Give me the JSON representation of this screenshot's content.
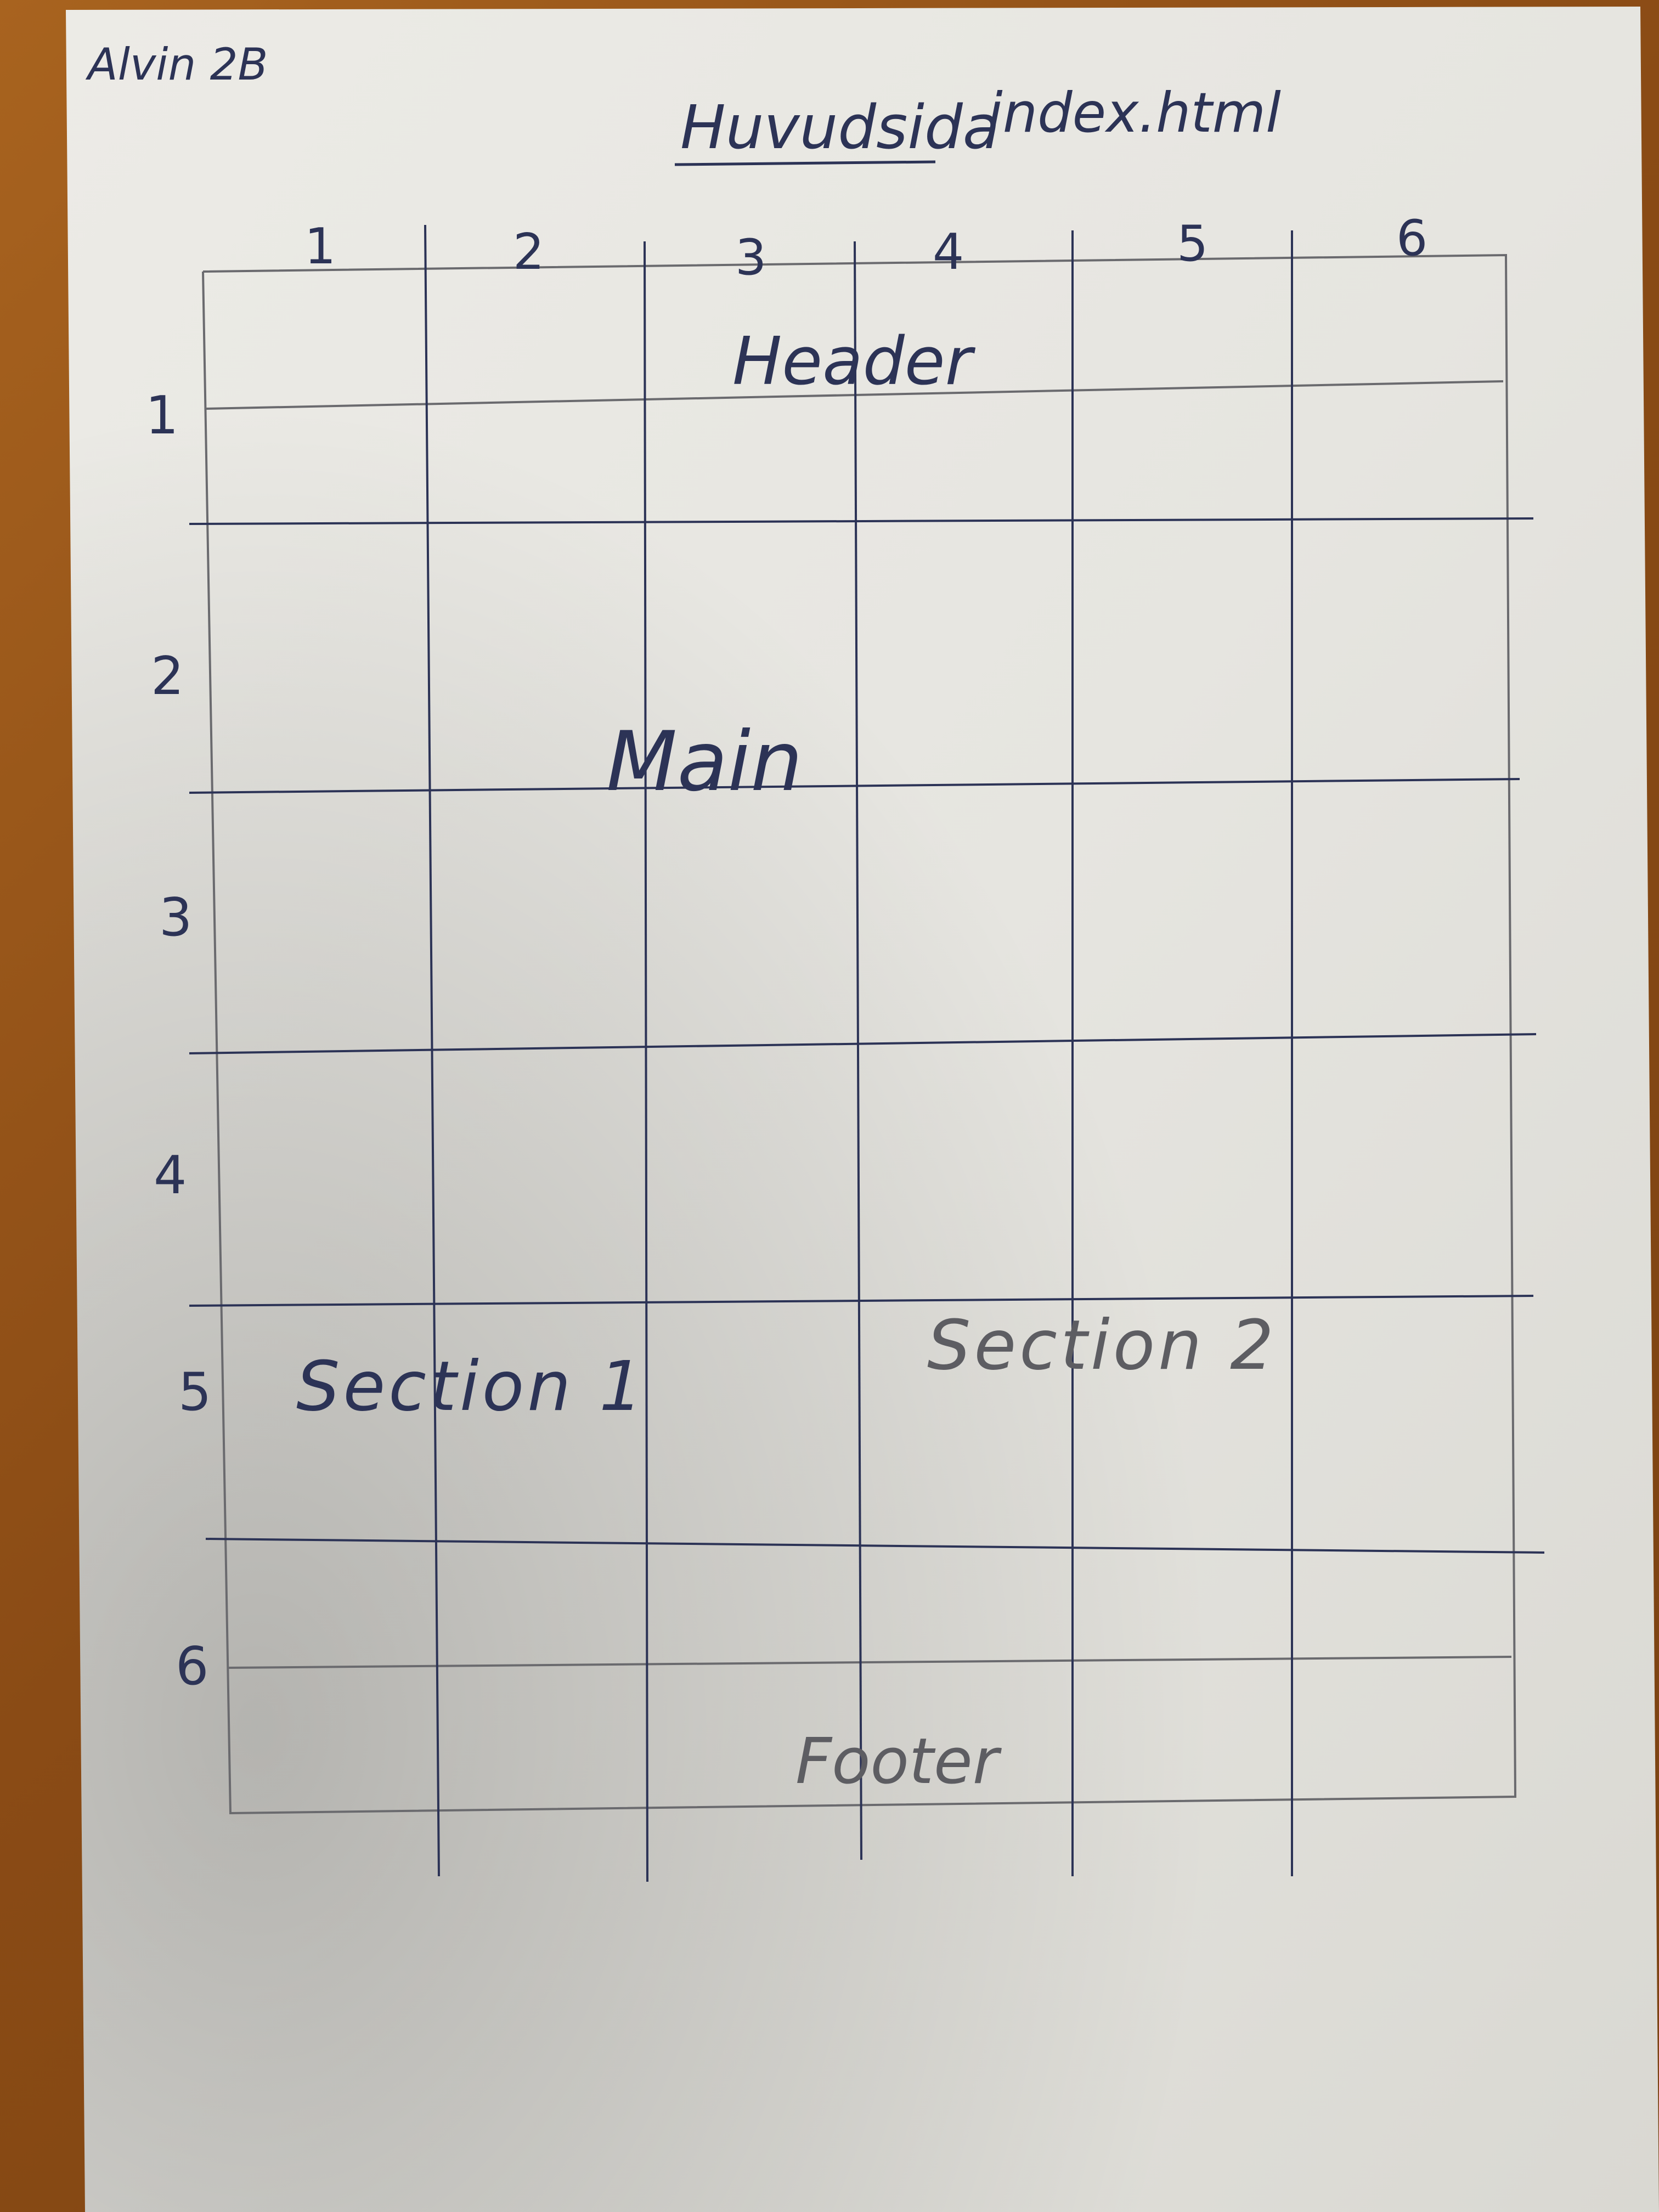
{
  "sheet": {
    "author_note": "Alvin 2B",
    "title_underlined": "Huvudsida",
    "title_file": "index.html"
  },
  "grid": {
    "column_numbers": [
      "1",
      "2",
      "3",
      "4",
      "5",
      "6"
    ],
    "row_numbers": [
      "1",
      "2",
      "3",
      "4",
      "5",
      "6"
    ],
    "areas": {
      "header": "Header",
      "main": "Main",
      "section1": "Section 1",
      "section2": "Section 2",
      "footer": "Footer"
    }
  },
  "colors": {
    "paper": "#ecebe6",
    "ink": "#2c3356",
    "pencil": "#5d5d62",
    "table": "#8a4b15"
  }
}
